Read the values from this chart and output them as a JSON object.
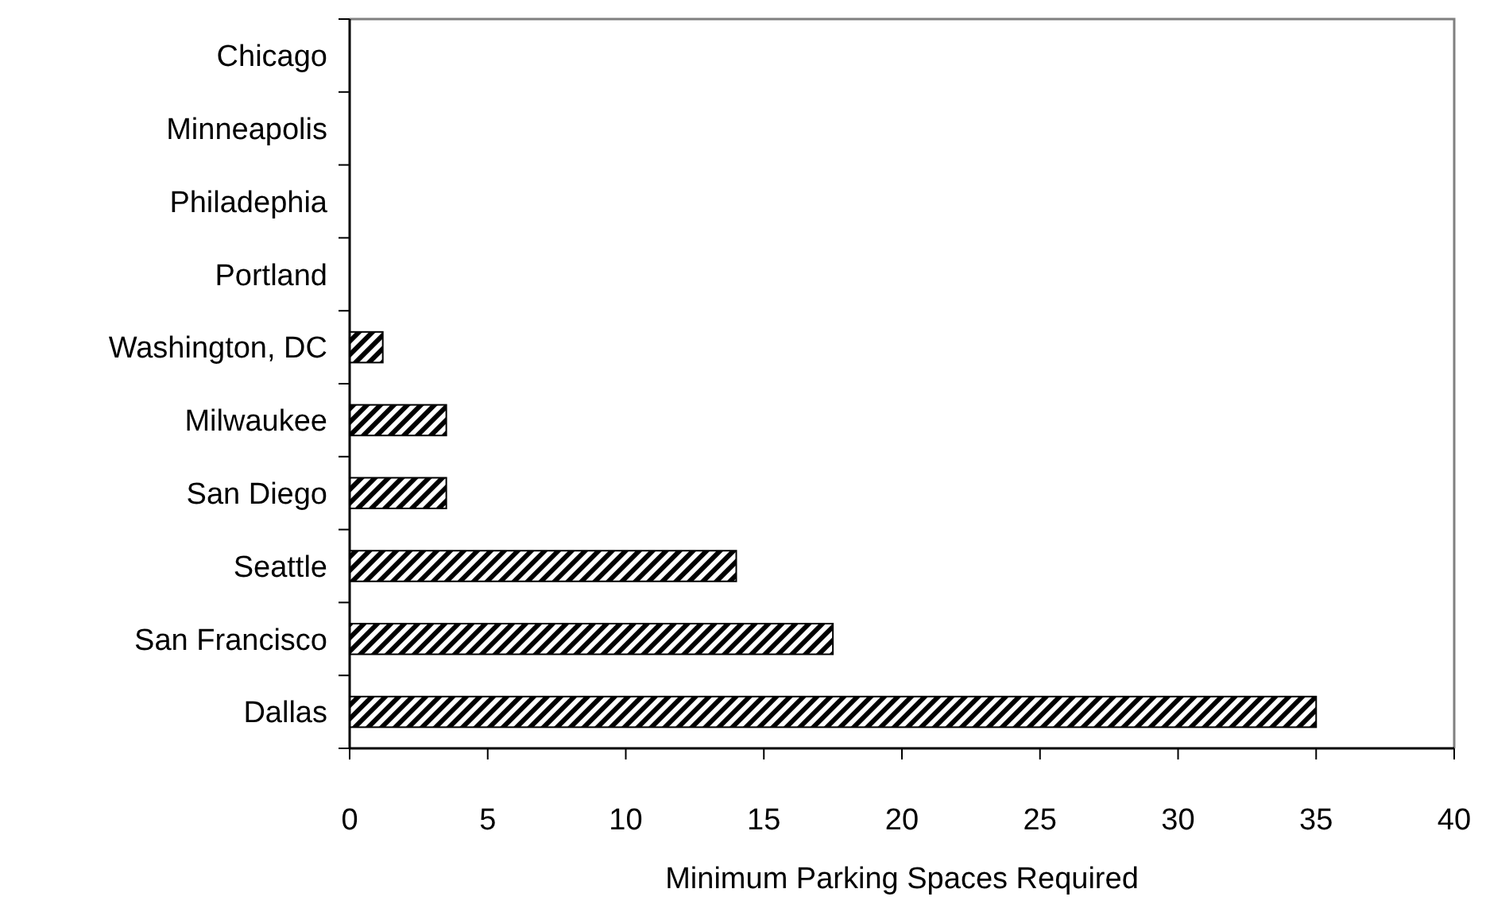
{
  "chart_data": {
    "type": "bar",
    "orientation": "horizontal",
    "xlabel": "Minimum Parking Spaces Required",
    "categories": [
      "Chicago",
      "Minneapolis",
      "Philadephia",
      "Portland",
      "Washington, DC",
      "Milwaukee",
      "San Diego",
      "Seattle",
      "San Francisco",
      "Dallas"
    ],
    "values": [
      0,
      0,
      0,
      0,
      1.2,
      3.5,
      3.5,
      14,
      17.5,
      35
    ],
    "color": "#000000",
    "xlim": [
      0,
      40
    ],
    "xticks": [
      0,
      5,
      10,
      15,
      20,
      25,
      30,
      35,
      40
    ],
    "grid": false
  }
}
